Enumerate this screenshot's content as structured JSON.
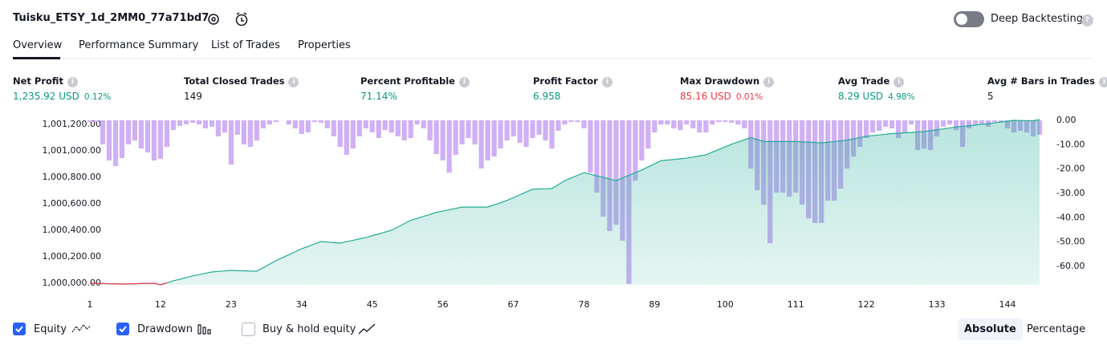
{
  "header": {
    "title": "Tuisku_ETSY_1d_2MM0_77a71bd7",
    "toggle": "Deep Backtesting"
  },
  "tabs": [
    "Overview",
    "Performance Summary",
    "List of Trades",
    "Properties"
  ],
  "stats": [
    {
      "label": "Net Profit",
      "value": "1,235.92 USD",
      "sub": "0.12%",
      "color": "#089981"
    },
    {
      "label": "Total Closed Trades",
      "value": "149",
      "color": "#131722"
    },
    {
      "label": "Percent Profitable",
      "value": "71.14%",
      "color": "#089981"
    },
    {
      "label": "Profit Factor",
      "value": "6.958",
      "color": "#089981"
    },
    {
      "label": "Max Drawdown",
      "value": "85.16 USD",
      "sub": "0.01%",
      "color": "#f23645"
    },
    {
      "label": "Avg Trade",
      "value": "8.29 USD",
      "sub": "4.98%",
      "color": "#089981"
    },
    {
      "label": "Avg # Bars in Trades",
      "value": "5",
      "color": "#131722"
    }
  ],
  "chart_data": {
    "type": "line",
    "x": [
      1,
      2,
      3,
      4,
      5,
      6,
      7,
      8,
      9,
      10,
      11,
      12,
      13,
      14,
      15,
      16,
      17,
      18,
      19,
      20,
      21,
      22,
      23,
      24,
      25,
      26,
      27,
      28,
      29,
      30,
      31,
      32,
      33,
      34,
      35,
      36,
      37,
      38,
      39,
      40,
      41,
      42,
      43,
      44,
      45,
      46,
      47,
      48,
      49,
      50,
      51,
      52,
      53,
      54,
      55,
      56,
      57,
      58,
      59,
      60,
      61,
      62,
      63,
      64,
      65,
      66,
      67,
      68,
      69,
      70,
      71,
      72,
      73,
      74,
      75,
      76,
      77,
      78,
      79,
      80,
      81,
      82,
      83,
      84,
      85,
      86,
      87,
      88,
      89,
      90,
      91,
      92,
      93,
      94,
      95,
      96,
      97,
      98,
      99,
      100,
      101,
      102,
      103,
      104,
      105,
      106,
      107,
      108,
      109,
      110,
      111,
      112,
      113,
      114,
      115,
      116,
      117,
      118,
      119,
      120,
      121,
      122,
      123,
      124,
      125,
      126,
      127,
      128,
      129,
      130,
      131,
      132,
      133,
      134,
      135,
      136,
      137,
      138,
      139,
      140,
      141,
      142,
      143,
      144,
      145,
      146,
      147,
      148,
      149
    ],
    "series": [
      {
        "name": "Equity",
        "checked": true,
        "color": "#22ab94",
        "negative_color": "#f23645",
        "values": [
          1000000,
          999999,
          999998,
          999996,
          999995,
          999994,
          999995,
          999996,
          999998,
          999999,
          1000000,
          999988,
          1000003,
          1000018,
          1000030,
          1000043,
          1000055,
          1000065,
          1000075,
          1000085,
          1000089,
          1000093,
          1000097,
          1000095,
          1000094,
          1000092,
          1000091,
          1000117,
          1000144,
          1000170,
          1000193,
          1000215,
          1000238,
          1000260,
          1000278,
          1000297,
          1000315,
          1000311,
          1000307,
          1000303,
          1000314,
          1000324,
          1000335,
          1000345,
          1000359,
          1000372,
          1000386,
          1000400,
          1000425,
          1000450,
          1000475,
          1000490,
          1000505,
          1000520,
          1000535,
          1000545,
          1000555,
          1000565,
          1000575,
          1000575,
          1000575,
          1000575,
          1000575,
          1000592,
          1000608,
          1000625,
          1000646,
          1000668,
          1000689,
          1000710,
          1000712,
          1000713,
          1000715,
          1000745,
          1000775,
          1000795,
          1000815,
          1000835,
          1000823,
          1000811,
          1000799,
          1000787,
          1000775,
          1000795,
          1000815,
          1000835,
          1000855,
          1000878,
          1000902,
          1000925,
          1000930,
          1000935,
          1000940,
          1000945,
          1000953,
          1000962,
          1000970,
          1000990,
          1001010,
          1001030,
          1001050,
          1001067,
          1001083,
          1001100,
          1001085,
          1001070,
          1001070,
          1001070,
          1001070,
          1001070,
          1001070,
          1001068,
          1001065,
          1001063,
          1001060,
          1001065,
          1001070,
          1001075,
          1001080,
          1001090,
          1001100,
          1001110,
          1001115,
          1001120,
          1001125,
          1001130,
          1001133,
          1001136,
          1001139,
          1001142,
          1001145,
          1001152,
          1001159,
          1001166,
          1001173,
          1001180,
          1001185,
          1001190,
          1001195,
          1001200,
          1001205,
          1001211,
          1001218,
          1001224,
          1001230,
          1001229,
          1001228,
          1001227,
          1001236
        ]
      },
      {
        "name": "Drawdown",
        "checked": true,
        "type": "bar",
        "axis": "y2",
        "color": "#cfb0f5",
        "values": [
          -0.7,
          -0.7,
          -9.9,
          -16.5,
          -18.8,
          -15.5,
          -9.9,
          -8.3,
          -11.6,
          -13.2,
          -16.5,
          -15.8,
          -10.9,
          -4.0,
          -2.3,
          -1.7,
          -1.0,
          -1.7,
          -3.3,
          -2.6,
          -6.6,
          -5.0,
          -18.2,
          -5.9,
          -9.9,
          -10.9,
          -8.3,
          -3.3,
          -1.7,
          -0.7,
          0,
          -1.7,
          -3.3,
          -5.6,
          -5.0,
          -0.7,
          -1.0,
          -3.3,
          -6.6,
          -10.9,
          -14.2,
          -11.6,
          -6.6,
          -3.3,
          -5.0,
          -7.3,
          -4.0,
          -5.0,
          -6.6,
          -8.3,
          -7.3,
          -1.7,
          -3.3,
          -8.3,
          -13.9,
          -16.5,
          -21.5,
          -14.2,
          -9.9,
          -7.3,
          -9.9,
          -19.8,
          -16.5,
          -14.9,
          -11.6,
          -8.3,
          -6.6,
          -9.2,
          -10.9,
          -7.3,
          -5.9,
          -8.3,
          -11.6,
          -4.3,
          -1.7,
          -0.7,
          -0.7,
          -3.3,
          -21.5,
          -29.7,
          -39.6,
          -45.5,
          -42.9,
          -49.5,
          -67.2,
          -24.8,
          -16.5,
          -11.6,
          -5.0,
          -1.7,
          -1.7,
          -3.3,
          -4.0,
          -1.7,
          -3.3,
          -5.0,
          -5.0,
          -1.7,
          -0.7,
          -0.7,
          -1.0,
          -1.7,
          -3.3,
          -19.8,
          -28.7,
          -34.7,
          -50.5,
          -29.7,
          -29.7,
          -31.4,
          -29.7,
          -34.7,
          -40.3,
          -42.2,
          -42.2,
          -33.0,
          -33.0,
          -28.1,
          -19.8,
          -14.9,
          -10.9,
          -7.3,
          -5.0,
          -4.3,
          -2.6,
          -3.3,
          -7.3,
          -5.0,
          -1.7,
          -12.2,
          -11.6,
          -12.2,
          -6.6,
          -2.6,
          -1.7,
          -4.0,
          -10.9,
          -3.3,
          -1.7,
          -1.7,
          -2.6,
          -0.7,
          -0.7,
          -3.3,
          -5.0,
          -4.3,
          -5.0,
          -6.6,
          -5.9
        ]
      }
    ],
    "extra_legend": {
      "name": "Buy & hold equity",
      "checked": false
    },
    "xticks": [
      1,
      12,
      23,
      34,
      45,
      56,
      67,
      78,
      89,
      100,
      111,
      122,
      133,
      144
    ],
    "xlim": [
      1,
      149
    ],
    "ylim": [
      999988,
      1001230
    ],
    "yticks": [
      {
        "value": 1000000,
        "label": "1,000,000.00"
      },
      {
        "value": 1000200,
        "label": "1,000,200.00"
      },
      {
        "value": 1000400,
        "label": "1,000,400.00"
      },
      {
        "value": 1000600,
        "label": "1,000,600.00"
      },
      {
        "value": 1000800,
        "label": "1,000,800.00"
      },
      {
        "value": 1001000,
        "label": "1,001,000.00"
      },
      {
        "value": 1001200,
        "label": "1,001,200.00"
      }
    ],
    "y2lim": [
      -67.6,
      0
    ],
    "y2ticks": [
      {
        "value": 0,
        "label": "0.00"
      },
      {
        "value": -10,
        "label": "-10.00"
      },
      {
        "value": -20,
        "label": "-20.00"
      },
      {
        "value": -30,
        "label": "-30.00"
      },
      {
        "value": -40,
        "label": "-40.00"
      },
      {
        "value": -50,
        "label": "-50.00"
      },
      {
        "value": -60,
        "label": "-60.00"
      }
    ]
  },
  "scale_buttons": [
    "Absolute",
    "Percentage"
  ],
  "active_scale": "Absolute"
}
